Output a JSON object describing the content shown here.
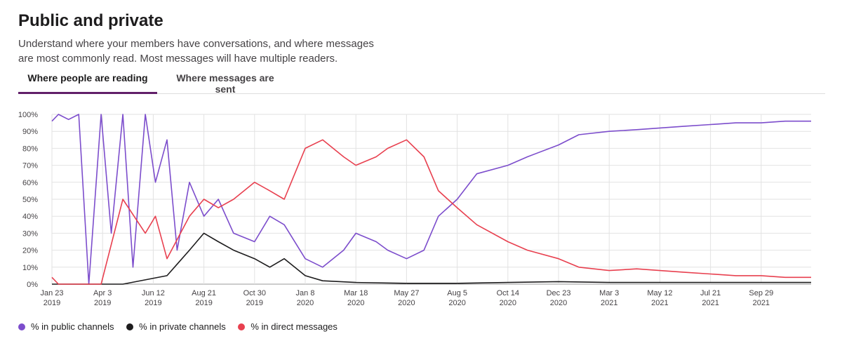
{
  "header": {
    "title": "Public and private",
    "subtitle": "Understand where your members have conversations, and where messages are most commonly read. Most messages will have multiple readers."
  },
  "tabs": [
    {
      "label": "Where people are reading",
      "active": true
    },
    {
      "label": "Where messages are sent",
      "active": false
    }
  ],
  "chart_data": {
    "type": "line",
    "title": "",
    "xlabel": "",
    "ylabel": "",
    "ylim": [
      0,
      100
    ],
    "y_ticks": [
      "0%",
      "10%",
      "20%",
      "30%",
      "40%",
      "50%",
      "60%",
      "70%",
      "80%",
      "90%",
      "100%"
    ],
    "x_tick_labels": [
      {
        "date": "2019-01-23",
        "line1": "Jan 23",
        "line2": "2019"
      },
      {
        "date": "2019-04-03",
        "line1": "Apr 3",
        "line2": "2019"
      },
      {
        "date": "2019-06-12",
        "line1": "Jun 12",
        "line2": "2019"
      },
      {
        "date": "2019-08-21",
        "line1": "Aug 21",
        "line2": "2019"
      },
      {
        "date": "2019-10-30",
        "line1": "Oct 30",
        "line2": "2019"
      },
      {
        "date": "2020-01-08",
        "line1": "Jan 8",
        "line2": "2020"
      },
      {
        "date": "2020-03-18",
        "line1": "Mar 18",
        "line2": "2020"
      },
      {
        "date": "2020-05-27",
        "line1": "May 27",
        "line2": "2020"
      },
      {
        "date": "2020-08-05",
        "line1": "Aug 5",
        "line2": "2020"
      },
      {
        "date": "2020-10-14",
        "line1": "Oct 14",
        "line2": "2020"
      },
      {
        "date": "2020-12-23",
        "line1": "Dec 23",
        "line2": "2020"
      },
      {
        "date": "2021-03-03",
        "line1": "Mar 3",
        "line2": "2021"
      },
      {
        "date": "2021-05-12",
        "line1": "May 12",
        "line2": "2021"
      },
      {
        "date": "2021-07-21",
        "line1": "Jul 21",
        "line2": "2021"
      },
      {
        "date": "2021-09-29",
        "line1": "Sep 29",
        "line2": "2021"
      }
    ],
    "x_range": [
      "2019-01-23",
      "2021-12-07"
    ],
    "grid": true,
    "legend_position": "bottom-left",
    "series": [
      {
        "name": "% in public channels",
        "color": "#7c4dcc",
        "points": [
          [
            "2019-01-23",
            96
          ],
          [
            "2019-02-01",
            100
          ],
          [
            "2019-02-15",
            97
          ],
          [
            "2019-03-01",
            100
          ],
          [
            "2019-03-15",
            0
          ],
          [
            "2019-04-01",
            100
          ],
          [
            "2019-04-15",
            30
          ],
          [
            "2019-05-01",
            100
          ],
          [
            "2019-05-15",
            10
          ],
          [
            "2019-06-01",
            100
          ],
          [
            "2019-06-15",
            60
          ],
          [
            "2019-07-01",
            85
          ],
          [
            "2019-07-15",
            20
          ],
          [
            "2019-08-01",
            60
          ],
          [
            "2019-08-21",
            40
          ],
          [
            "2019-09-10",
            50
          ],
          [
            "2019-10-01",
            30
          ],
          [
            "2019-10-30",
            25
          ],
          [
            "2019-11-20",
            40
          ],
          [
            "2019-12-10",
            35
          ],
          [
            "2020-01-08",
            15
          ],
          [
            "2020-02-01",
            10
          ],
          [
            "2020-03-01",
            20
          ],
          [
            "2020-03-18",
            30
          ],
          [
            "2020-04-15",
            25
          ],
          [
            "2020-05-01",
            20
          ],
          [
            "2020-05-27",
            15
          ],
          [
            "2020-06-20",
            20
          ],
          [
            "2020-07-10",
            40
          ],
          [
            "2020-08-05",
            50
          ],
          [
            "2020-09-01",
            65
          ],
          [
            "2020-10-14",
            70
          ],
          [
            "2020-11-10",
            75
          ],
          [
            "2020-12-23",
            82
          ],
          [
            "2021-01-20",
            88
          ],
          [
            "2021-03-03",
            90
          ],
          [
            "2021-04-10",
            91
          ],
          [
            "2021-05-12",
            92
          ],
          [
            "2021-06-15",
            93
          ],
          [
            "2021-07-21",
            94
          ],
          [
            "2021-08-25",
            95
          ],
          [
            "2021-09-29",
            95
          ],
          [
            "2021-11-01",
            96
          ],
          [
            "2021-12-07",
            96
          ]
        ]
      },
      {
        "name": "% in private channels",
        "color": "#1d1c1d",
        "points": [
          [
            "2019-01-23",
            0
          ],
          [
            "2019-03-01",
            0
          ],
          [
            "2019-05-01",
            0
          ],
          [
            "2019-07-01",
            5
          ],
          [
            "2019-08-01",
            20
          ],
          [
            "2019-08-21",
            30
          ],
          [
            "2019-09-10",
            25
          ],
          [
            "2019-10-01",
            20
          ],
          [
            "2019-10-30",
            15
          ],
          [
            "2019-11-20",
            10
          ],
          [
            "2019-12-10",
            15
          ],
          [
            "2020-01-08",
            5
          ],
          [
            "2020-02-01",
            2
          ],
          [
            "2020-03-18",
            1
          ],
          [
            "2020-05-27",
            0.5
          ],
          [
            "2020-08-05",
            0.5
          ],
          [
            "2020-10-14",
            1
          ],
          [
            "2020-12-23",
            1.5
          ],
          [
            "2021-03-03",
            1
          ],
          [
            "2021-05-12",
            1
          ],
          [
            "2021-07-21",
            1
          ],
          [
            "2021-09-29",
            1
          ],
          [
            "2021-12-07",
            1
          ]
        ]
      },
      {
        "name": "% in direct messages",
        "color": "#e8404f",
        "points": [
          [
            "2019-01-23",
            4
          ],
          [
            "2019-02-01",
            0
          ],
          [
            "2019-03-01",
            0
          ],
          [
            "2019-04-01",
            0
          ],
          [
            "2019-05-01",
            50
          ],
          [
            "2019-06-01",
            30
          ],
          [
            "2019-06-15",
            40
          ],
          [
            "2019-07-01",
            15
          ],
          [
            "2019-08-01",
            40
          ],
          [
            "2019-08-21",
            50
          ],
          [
            "2019-09-10",
            45
          ],
          [
            "2019-10-01",
            50
          ],
          [
            "2019-10-30",
            60
          ],
          [
            "2019-11-20",
            55
          ],
          [
            "2019-12-10",
            50
          ],
          [
            "2020-01-08",
            80
          ],
          [
            "2020-02-01",
            85
          ],
          [
            "2020-03-01",
            75
          ],
          [
            "2020-03-18",
            70
          ],
          [
            "2020-04-15",
            75
          ],
          [
            "2020-05-01",
            80
          ],
          [
            "2020-05-27",
            85
          ],
          [
            "2020-06-20",
            75
          ],
          [
            "2020-07-10",
            55
          ],
          [
            "2020-08-05",
            45
          ],
          [
            "2020-09-01",
            35
          ],
          [
            "2020-10-14",
            25
          ],
          [
            "2020-11-10",
            20
          ],
          [
            "2020-12-23",
            15
          ],
          [
            "2021-01-20",
            10
          ],
          [
            "2021-03-03",
            8
          ],
          [
            "2021-04-10",
            9
          ],
          [
            "2021-05-12",
            8
          ],
          [
            "2021-06-15",
            7
          ],
          [
            "2021-07-21",
            6
          ],
          [
            "2021-08-25",
            5
          ],
          [
            "2021-09-29",
            5
          ],
          [
            "2021-11-01",
            4
          ],
          [
            "2021-12-07",
            4
          ]
        ]
      }
    ]
  }
}
